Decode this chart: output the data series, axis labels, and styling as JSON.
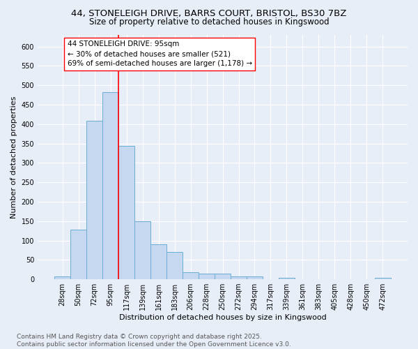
{
  "title_line1": "44, STONELEIGH DRIVE, BARRS COURT, BRISTOL, BS30 7BZ",
  "title_line2": "Size of property relative to detached houses in Kingswood",
  "xlabel": "Distribution of detached houses by size in Kingswood",
  "ylabel": "Number of detached properties",
  "bar_labels": [
    "28sqm",
    "50sqm",
    "72sqm",
    "95sqm",
    "117sqm",
    "139sqm",
    "161sqm",
    "183sqm",
    "206sqm",
    "228sqm",
    "250sqm",
    "272sqm",
    "294sqm",
    "317sqm",
    "339sqm",
    "361sqm",
    "383sqm",
    "405sqm",
    "428sqm",
    "450sqm",
    "472sqm"
  ],
  "bar_values": [
    8,
    128,
    408,
    483,
    343,
    149,
    91,
    70,
    18,
    14,
    14,
    8,
    7,
    0,
    3,
    0,
    0,
    0,
    0,
    0,
    4
  ],
  "bar_color": "#c5d8f0",
  "bar_edge_color": "#6baed6",
  "background_color": "#e8eef8",
  "grid_color": "#ffffff",
  "vline_x": 3.5,
  "vline_color": "red",
  "annotation_text": "44 STONELEIGH DRIVE: 95sqm\n← 30% of detached houses are smaller (521)\n69% of semi-detached houses are larger (1,178) →",
  "annotation_box_color": "white",
  "annotation_box_edge": "red",
  "ylim": [
    0,
    630
  ],
  "yticks": [
    0,
    50,
    100,
    150,
    200,
    250,
    300,
    350,
    400,
    450,
    500,
    550,
    600
  ],
  "footnote": "Contains HM Land Registry data © Crown copyright and database right 2025.\nContains public sector information licensed under the Open Government Licence v3.0.",
  "title_fontsize": 9.5,
  "subtitle_fontsize": 8.5,
  "axis_label_fontsize": 8,
  "tick_fontsize": 7,
  "annotation_fontsize": 7.5,
  "footnote_fontsize": 6.5
}
